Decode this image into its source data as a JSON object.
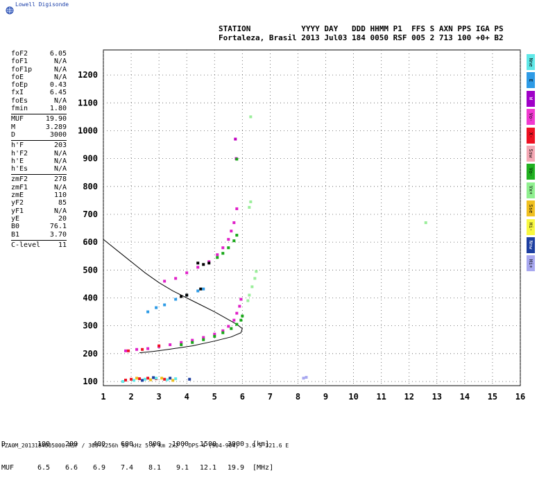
{
  "brand": "Lowell Digisonde",
  "header": {
    "labels": "STATION           YYYY DAY   DDD HHMM P1  FFS S AXN PPS IGA PS",
    "values": "Fortaleza, Brasil 2013 Jul03 184 0050 RSF 005 2 713 100 +0+ B2"
  },
  "params": [
    {
      "k": "foF2",
      "v": "6.05"
    },
    {
      "k": "foF1",
      "v": "N/A"
    },
    {
      "k": "foF1p",
      "v": "N/A"
    },
    {
      "k": "foE",
      "v": "N/A"
    },
    {
      "k": "foEp",
      "v": "0.43"
    },
    {
      "k": "fxI",
      "v": "6.45"
    },
    {
      "k": "foEs",
      "v": "N/A"
    },
    {
      "k": "fmin",
      "v": "1.80"
    },
    {
      "sep": true
    },
    {
      "k": "MUF",
      "v": "19.90"
    },
    {
      "k": "M",
      "v": "3.289"
    },
    {
      "k": "D",
      "v": "3000"
    },
    {
      "sep": true
    },
    {
      "k": "h'F",
      "v": "203"
    },
    {
      "k": "h'F2",
      "v": "N/A"
    },
    {
      "k": "h'E",
      "v": "N/A"
    },
    {
      "k": "h'Es",
      "v": "N/A"
    },
    {
      "sep": true
    },
    {
      "k": "zmF2",
      "v": "278"
    },
    {
      "k": "zmF1",
      "v": "N/A"
    },
    {
      "k": "zmE",
      "v": "110"
    },
    {
      "k": "yF2",
      "v": "85"
    },
    {
      "k": "yF1",
      "v": "N/A"
    },
    {
      "k": "yE",
      "v": "20"
    },
    {
      "k": "B0",
      "v": "76.1"
    },
    {
      "k": "B1",
      "v": "3.70"
    },
    {
      "sep": true
    },
    {
      "k": "C-level",
      "v": "11"
    }
  ],
  "modes": [
    {
      "label": "Nne",
      "color": "#5fe8e8"
    },
    {
      "label": "E",
      "color": "#2e9be6"
    },
    {
      "label": "W",
      "color": "#a000c8"
    },
    {
      "label": "Vo-",
      "color": "#f03ad0"
    },
    {
      "label": "X-",
      "color": "#ee1122"
    },
    {
      "label": "Ssw",
      "color": "#f4a8b4"
    },
    {
      "label": "Vo-",
      "color": "#20b020"
    },
    {
      "label": "Vx+",
      "color": "#90f090"
    },
    {
      "label": "Sse",
      "color": "#f0c020"
    },
    {
      "label": "Hi-",
      "color": "#f8f840"
    },
    {
      "label": "Nnw",
      "color": "#1c3ea0"
    },
    {
      "label": "Hi+",
      "color": "#a8a8f0"
    }
  ],
  "muf_table": {
    "row1_head": "D",
    "row1": [
      "100",
      "200",
      "400",
      "600",
      "800",
      "1000",
      "1500",
      "3000"
    ],
    "row1_unit": "[km]",
    "row2_head": "MUF",
    "row2": [
      "6.5",
      "6.6",
      "6.9",
      "7.4",
      "8.1",
      "9.1",
      "12.1",
      "19.9"
    ],
    "row2_unit": "[MHz]"
  },
  "footer": "FZA0M_2013184005000.RSF / 300+x256h 50 kHz 5.0 km 2x2 / DPS-4 (904-904)  3.9 S 321.6 E",
  "chart_data": {
    "type": "scatter",
    "xlabel": "",
    "ylabel": "",
    "xlim": [
      1,
      16
    ],
    "ylim": [
      85,
      1290
    ],
    "xticks": [
      1,
      2,
      3,
      4,
      5,
      6,
      7,
      8,
      9,
      10,
      11,
      12,
      13,
      14,
      15,
      16
    ],
    "yticks": [
      100,
      200,
      300,
      400,
      500,
      600,
      700,
      800,
      900,
      1000,
      1100,
      1200
    ],
    "grid": true,
    "profile": [
      [
        1.0,
        610
      ],
      [
        1.5,
        570
      ],
      [
        2.0,
        530
      ],
      [
        2.5,
        490
      ],
      [
        3.0,
        455
      ],
      [
        3.5,
        425
      ],
      [
        4.0,
        400
      ],
      [
        4.5,
        375
      ],
      [
        5.0,
        350
      ],
      [
        5.5,
        322
      ],
      [
        5.8,
        305
      ],
      [
        6.0,
        290
      ],
      [
        5.95,
        275
      ],
      [
        5.6,
        260
      ],
      [
        5.0,
        245
      ],
      [
        4.2,
        228
      ],
      [
        3.4,
        216
      ],
      [
        2.8,
        208
      ],
      [
        2.3,
        203
      ]
    ],
    "traces": [
      {
        "color": "#e020c8",
        "pts": [
          [
            1.8,
            210
          ],
          [
            2.2,
            215
          ],
          [
            2.6,
            218
          ],
          [
            3.0,
            225
          ],
          [
            3.4,
            232
          ],
          [
            3.8,
            240
          ],
          [
            4.2,
            248
          ],
          [
            4.6,
            258
          ],
          [
            5.0,
            270
          ],
          [
            5.3,
            282
          ],
          [
            5.5,
            298
          ],
          [
            5.7,
            320
          ],
          [
            5.8,
            345
          ],
          [
            5.9,
            370
          ],
          [
            5.95,
            395
          ]
        ]
      },
      {
        "color": "#18a818",
        "pts": [
          [
            3.8,
            232
          ],
          [
            4.2,
            240
          ],
          [
            4.6,
            250
          ],
          [
            5.0,
            262
          ],
          [
            5.3,
            275
          ],
          [
            5.6,
            290
          ],
          [
            5.8,
            305
          ],
          [
            5.95,
            320
          ],
          [
            6.0,
            335
          ]
        ]
      },
      {
        "color": "#e020c8",
        "pts": [
          [
            3.2,
            460
          ],
          [
            3.6,
            470
          ],
          [
            4.0,
            490
          ],
          [
            4.4,
            510
          ],
          [
            4.8,
            530
          ],
          [
            5.1,
            555
          ],
          [
            5.3,
            580
          ],
          [
            5.5,
            610
          ],
          [
            5.6,
            640
          ],
          [
            5.7,
            670
          ],
          [
            5.8,
            720
          ]
        ]
      },
      {
        "color": "#18a818",
        "pts": [
          [
            5.1,
            545
          ],
          [
            5.3,
            560
          ],
          [
            5.5,
            580
          ],
          [
            5.7,
            605
          ],
          [
            5.8,
            625
          ]
        ]
      },
      {
        "color": "#9bee9b",
        "pts": [
          [
            6.2,
            390
          ],
          [
            6.25,
            410
          ],
          [
            6.35,
            440
          ],
          [
            6.45,
            470
          ],
          [
            6.5,
            495
          ],
          [
            6.25,
            725
          ],
          [
            6.3,
            745
          ]
        ]
      },
      {
        "color": "#c000c0",
        "pts": [
          [
            5.75,
            970
          ],
          [
            5.78,
            900
          ]
        ]
      },
      {
        "color": "#18a818",
        "pts": [
          [
            5.8,
            898
          ]
        ]
      },
      {
        "color": "#9bee9b",
        "pts": [
          [
            6.3,
            1050
          ],
          [
            12.6,
            670
          ]
        ]
      },
      {
        "color": "#2e9be6",
        "pts": [
          [
            2.6,
            350
          ],
          [
            2.9,
            365
          ],
          [
            3.2,
            375
          ],
          [
            3.6,
            395
          ],
          [
            4.0,
            410
          ],
          [
            4.4,
            425
          ],
          [
            4.6,
            432
          ]
        ]
      },
      {
        "color": "#000000",
        "pts": [
          [
            3.8,
            405
          ],
          [
            4.0,
            410
          ],
          [
            4.5,
            432
          ],
          [
            4.4,
            525
          ],
          [
            4.6,
            520
          ],
          [
            4.8,
            525
          ]
        ]
      },
      {
        "color": "#ee1122",
        "pts": [
          [
            1.8,
            105
          ],
          [
            2.0,
            108
          ],
          [
            2.3,
            110
          ],
          [
            2.6,
            112
          ],
          [
            2.9,
            110
          ],
          [
            3.2,
            108
          ],
          [
            1.9,
            210
          ],
          [
            2.4,
            215
          ],
          [
            3.0,
            228
          ]
        ]
      },
      {
        "color": "#5fe8e8",
        "pts": [
          [
            1.7,
            100
          ],
          [
            2.1,
            104
          ],
          [
            2.5,
            108
          ],
          [
            2.9,
            112
          ],
          [
            3.3,
            106
          ],
          [
            3.6,
            110
          ]
        ]
      },
      {
        "color": "#f0c020",
        "pts": [
          [
            2.2,
            112
          ],
          [
            2.7,
            106
          ],
          [
            3.1,
            112
          ],
          [
            3.5,
            104
          ]
        ]
      },
      {
        "color": "#1c3ea0",
        "pts": [
          [
            2.4,
            104
          ],
          [
            2.8,
            114
          ],
          [
            3.4,
            112
          ],
          [
            4.1,
            108
          ]
        ]
      },
      {
        "color": "#a8a8f0",
        "pts": [
          [
            8.2,
            112
          ],
          [
            8.3,
            115
          ]
        ]
      }
    ]
  }
}
